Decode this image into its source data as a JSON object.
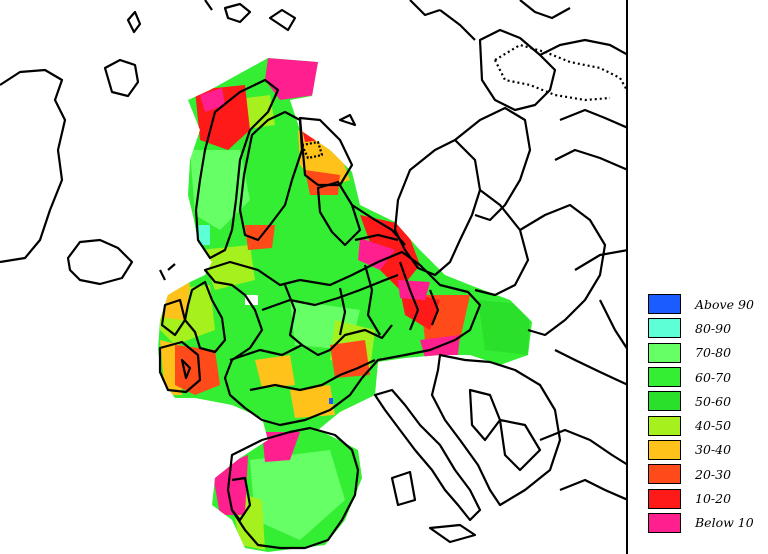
{
  "legend": {
    "items": [
      {
        "label": "Above 90",
        "color": "#1a5cff"
      },
      {
        "label": "80-90",
        "color": "#5cffd6"
      },
      {
        "label": "70-80",
        "color": "#66ff66"
      },
      {
        "label": "60-70",
        "color": "#33ee33"
      },
      {
        "label": "50-60",
        "color": "#2be02b"
      },
      {
        "label": "40-50",
        "color": "#a6f01e"
      },
      {
        "label": "30-40",
        "color": "#ffc21a"
      },
      {
        "label": "20-30",
        "color": "#ff4a1a"
      },
      {
        "label": "10-20",
        "color": "#ff1a1a"
      },
      {
        "label": "Below 10",
        "color": "#ff1f8f"
      }
    ]
  }
}
